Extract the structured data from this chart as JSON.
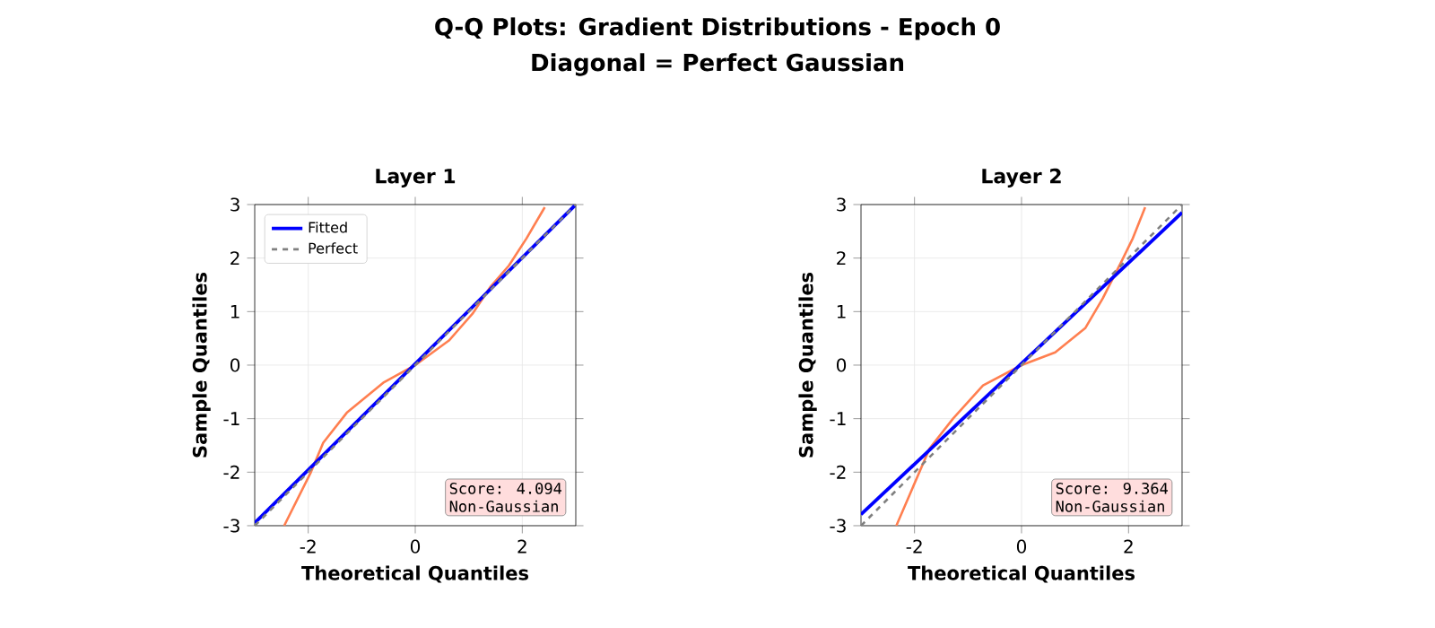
{
  "chart_data": [
    {
      "type": "other",
      "title": "Q-Q Plots: Gradient Distributions - Epoch 0",
      "subtitle": "Diagonal = Perfect Gaussian"
    },
    {
      "type": "line",
      "title": "Layer 1",
      "xlabel": "Theoretical Quantiles",
      "ylabel": "Sample Quantiles",
      "xlim": [
        -3,
        3
      ],
      "ylim": [
        -3,
        3
      ],
      "xticks": [
        -2,
        0,
        2
      ],
      "yticks": [
        -3,
        -2,
        -1,
        0,
        1,
        2,
        3
      ],
      "grid": true,
      "legend": "top left",
      "marker": "none",
      "annotations": [
        "Score: 4.094",
        "Non-Gaussian"
      ],
      "series": [
        {
          "color": "#ff7f50",
          "line_style": "solid",
          "x": [
            -2.45,
            -1.95,
            -1.72,
            -1.28,
            -0.6,
            0,
            0.63,
            1.07,
            1.41,
            1.75,
            2.08,
            2.42
          ],
          "values": [
            -3,
            -2.0,
            -1.45,
            -0.89,
            -0.33,
            0,
            0.46,
            0.96,
            1.47,
            1.86,
            2.37,
            2.95
          ]
        },
        {
          "name": "Fitted",
          "color": "#0000ff",
          "line_style": "solid",
          "x": [
            -3,
            3
          ],
          "values": [
            -2.95,
            3
          ]
        },
        {
          "name": "Perfect",
          "color": "#808080",
          "line_style": "dashed",
          "x": [
            -3,
            3
          ],
          "values": [
            -3,
            3
          ]
        }
      ]
    },
    {
      "type": "line",
      "title": "Layer 2",
      "xlabel": "Theoretical Quantiles",
      "ylabel": "Sample Quantiles",
      "xlim": [
        -3,
        3
      ],
      "ylim": [
        -3,
        3
      ],
      "xticks": [
        -2,
        0,
        2
      ],
      "yticks": [
        -3,
        -2,
        -1,
        0,
        1,
        2,
        3
      ],
      "grid": true,
      "marker": "none",
      "annotations": [
        "Score: 9.364",
        "Non-Gaussian"
      ],
      "series": [
        {
          "color": "#ff7f50",
          "line_style": "solid",
          "x": [
            -2.34,
            -2.06,
            -1.72,
            -1.28,
            -0.72,
            0,
            0.63,
            1.19,
            1.52,
            1.86,
            2.08,
            2.31
          ],
          "values": [
            -3,
            -2.35,
            -1.56,
            -1.0,
            -0.38,
            0,
            0.24,
            0.69,
            1.25,
            1.92,
            2.37,
            2.95
          ]
        },
        {
          "color": "#0000ff",
          "line_style": "solid",
          "x": [
            -3,
            3
          ],
          "values": [
            -2.79,
            2.85
          ]
        },
        {
          "color": "#808080",
          "line_style": "dashed",
          "x": [
            -3,
            3
          ],
          "values": [
            -3,
            3
          ]
        }
      ]
    }
  ]
}
